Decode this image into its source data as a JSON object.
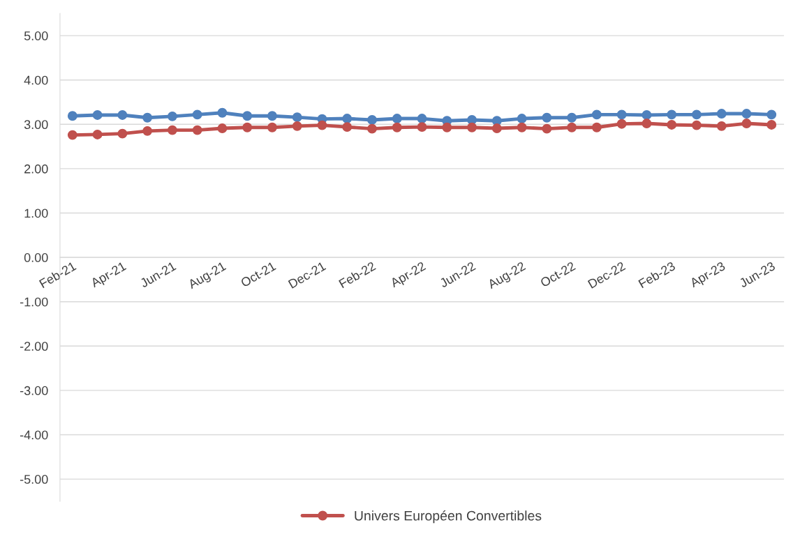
{
  "chart_data": {
    "type": "line",
    "categories": [
      "Feb-21",
      null,
      "Apr-21",
      null,
      "Jun-21",
      null,
      "Aug-21",
      null,
      "Oct-21",
      null,
      "Dec-21",
      null,
      "Feb-22",
      null,
      "Apr-22",
      null,
      "Jun-22",
      null,
      "Aug-22",
      null,
      "Oct-22",
      null,
      "Dec-22",
      null,
      "Feb-23",
      null,
      "Apr-23",
      null,
      "Jun-23"
    ],
    "series": [
      {
        "color": "#4f81bd",
        "values": [
          3.19,
          3.21,
          3.21,
          3.15,
          3.18,
          3.22,
          3.26,
          3.19,
          3.19,
          3.16,
          3.12,
          3.13,
          3.1,
          3.13,
          3.13,
          3.08,
          3.1,
          3.08,
          3.13,
          3.15,
          3.15,
          3.22,
          3.22,
          3.21,
          3.22,
          3.22,
          3.24,
          3.24,
          3.22
        ]
      },
      {
        "name": "Univers Européen Convertibles",
        "color": "#c0504d",
        "values": [
          2.76,
          2.77,
          2.79,
          2.85,
          2.87,
          2.87,
          2.91,
          2.93,
          2.93,
          2.96,
          2.98,
          2.94,
          2.9,
          2.93,
          2.94,
          2.93,
          2.93,
          2.91,
          2.93,
          2.9,
          2.93,
          2.93,
          3.01,
          3.02,
          2.99,
          2.98,
          2.96,
          3.02,
          2.99
        ]
      }
    ],
    "ylim": [
      -5.5,
      5.5
    ],
    "yticks": [
      {
        "value": -5,
        "label": "-5.00"
      },
      {
        "value": -4,
        "label": "-4.00"
      },
      {
        "value": -3,
        "label": "-3.00"
      },
      {
        "value": -2,
        "label": "-2.00"
      },
      {
        "value": -1,
        "label": "-1.00"
      },
      {
        "value": 0,
        "label": "0.00"
      },
      {
        "value": 1,
        "label": "1.00"
      },
      {
        "value": 2,
        "label": "2.00"
      },
      {
        "value": 3,
        "label": "3.00"
      },
      {
        "value": 4,
        "label": "4.00"
      },
      {
        "value": 5,
        "label": "5.00"
      }
    ],
    "grid": "y",
    "legend": "bottom",
    "marker": "circle",
    "line_style": "solid"
  }
}
